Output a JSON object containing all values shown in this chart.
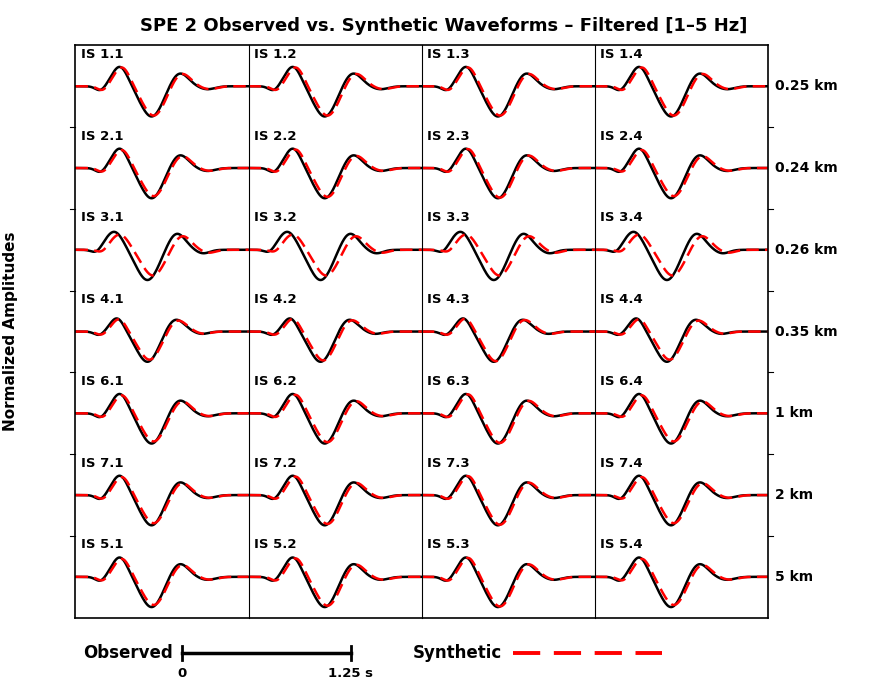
{
  "title": "SPE 2 Observed vs. Synthetic Waveforms – Filtered [1–5 Hz]",
  "ylabel": "Normalized Amplitudes",
  "rows": [
    {
      "label_prefix": "IS 1",
      "dist": "0.25 km"
    },
    {
      "label_prefix": "IS 2",
      "dist": "0.24 km"
    },
    {
      "label_prefix": "IS 3",
      "dist": "0.26 km"
    },
    {
      "label_prefix": "IS 4",
      "dist": "0.35 km"
    },
    {
      "label_prefix": "IS 6",
      "dist": "1 km"
    },
    {
      "label_prefix": "IS 7",
      "dist": "2 km"
    },
    {
      "label_prefix": "IS 5",
      "dist": "5 km"
    }
  ],
  "cols": 4,
  "n_rows": 7,
  "obs_color": "#000000",
  "syn_color": "#ff0000",
  "bg_color": "#ffffff",
  "title_fontsize": 13,
  "label_fontsize": 9.5,
  "dist_fontsize": 10,
  "legend_fontsize": 12
}
